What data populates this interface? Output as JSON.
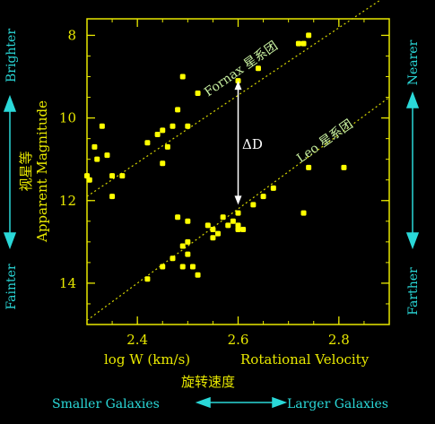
{
  "colors": {
    "background": "#000000",
    "axes": "#e8e800",
    "points": "#ffff00",
    "fit_lines": "#d8d800",
    "cyan_labels": "#2ad8d8",
    "delta_arrow": "#ffffff",
    "fornax_label": "#c8f0a0",
    "leo_label": "#c8f0a0"
  },
  "chart_data": {
    "type": "scatter",
    "xlabel": "log W (km/s)",
    "xlabel_right": "Rotational Velocity",
    "xlabel_cn": "旋转速度",
    "ylabel": "Apparent Magnitude",
    "ylabel_cn": "视星等",
    "xlim": [
      2.3,
      2.9
    ],
    "ylim": [
      15,
      7.6
    ],
    "y_inverted": true,
    "xticks": [
      2.4,
      2.6,
      2.8
    ],
    "xtick_labels": [
      "2.4",
      "2.6",
      "2.8"
    ],
    "yticks": [
      8,
      10,
      12,
      14
    ],
    "ytick_labels": [
      "8",
      "10",
      "12",
      "14"
    ],
    "grid": false,
    "side_labels": {
      "left_top": "Brighter",
      "left_bottom": "Fainter",
      "right_top": "Nearer",
      "right_bottom": "Farther",
      "bottom_left": "Smaller Galaxies",
      "bottom_right": "Larger Galaxies"
    },
    "annotations": {
      "fornax": "Fornax 星系团",
      "leo": "Leo 星系团",
      "delta": "ΔD"
    },
    "fit_lines": [
      {
        "name": "Fornax",
        "points": [
          [
            2.3,
            11.9
          ],
          [
            2.9,
            7.0
          ]
        ]
      },
      {
        "name": "Leo",
        "points": [
          [
            2.3,
            14.9
          ],
          [
            2.9,
            9.5
          ]
        ]
      }
    ],
    "delta_arrow": {
      "x": 2.6,
      "y_from": 9.1,
      "y_to": 12.1
    },
    "series": [
      {
        "name": "Fornax",
        "x": [
          2.3,
          2.305,
          2.32,
          2.315,
          2.33,
          2.34,
          2.35,
          2.35,
          2.37,
          2.42,
          2.44,
          2.45,
          2.45,
          2.46,
          2.47,
          2.48,
          2.49,
          2.5,
          2.52,
          2.6,
          2.64,
          2.72,
          2.73,
          2.74
        ],
        "y": [
          11.4,
          11.5,
          11.0,
          10.7,
          10.2,
          10.9,
          11.4,
          11.9,
          11.4,
          10.6,
          10.4,
          10.3,
          11.1,
          10.7,
          10.2,
          9.8,
          9.0,
          10.2,
          9.4,
          9.1,
          8.8,
          8.2,
          8.2,
          8.0
        ]
      },
      {
        "name": "Leo",
        "x": [
          2.42,
          2.45,
          2.47,
          2.48,
          2.49,
          2.49,
          2.5,
          2.5,
          2.5,
          2.51,
          2.52,
          2.54,
          2.55,
          2.55,
          2.56,
          2.57,
          2.58,
          2.59,
          2.6,
          2.6,
          2.6,
          2.61,
          2.63,
          2.65,
          2.67,
          2.73,
          2.74,
          2.81
        ],
        "y": [
          13.9,
          13.6,
          13.4,
          12.4,
          13.1,
          13.6,
          12.5,
          13.0,
          13.3,
          13.6,
          13.8,
          12.6,
          12.9,
          12.7,
          12.8,
          12.4,
          12.6,
          12.5,
          12.3,
          12.6,
          12.7,
          12.7,
          12.1,
          11.9,
          11.7,
          12.3,
          11.2,
          11.2
        ]
      }
    ]
  }
}
